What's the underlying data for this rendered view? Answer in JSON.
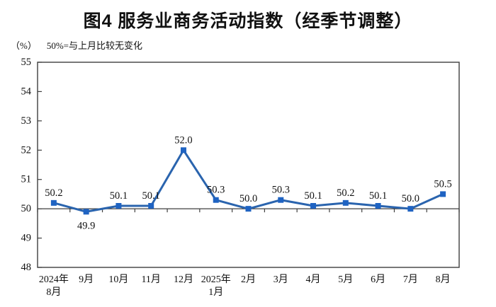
{
  "header": {
    "title": "图4 服务业商务活动指数（经季节调整）",
    "unit_label": "（%）",
    "note": "50%=与上月比较无变化"
  },
  "colors": {
    "line": "#2A64AE",
    "marker": "#1F63C2",
    "axis": "#3f3f3f",
    "text": "#111111",
    "background": "#ffffff"
  },
  "chart_data": {
    "type": "line",
    "title": "图4 服务业商务活动指数（经季节调整）",
    "subtitle": "（%） 50%=与上月比较无变化",
    "categories": [
      {
        "label": "2024年",
        "sublabel": "8月"
      },
      {
        "label": "9月"
      },
      {
        "label": "10月"
      },
      {
        "label": "11月"
      },
      {
        "label": "12月"
      },
      {
        "label": "2025年",
        "sublabel": "1月"
      },
      {
        "label": "2月"
      },
      {
        "label": "3月"
      },
      {
        "label": "4月"
      },
      {
        "label": "5月"
      },
      {
        "label": "6月"
      },
      {
        "label": "7月"
      },
      {
        "label": "8月"
      }
    ],
    "values": [
      50.2,
      49.9,
      50.1,
      50.1,
      52.0,
      50.3,
      50.0,
      50.3,
      50.1,
      50.2,
      50.1,
      50.0,
      50.5
    ],
    "data_labels": [
      "50.2",
      "49.9",
      "50.1",
      "50.1",
      "52.0",
      "50.3",
      "50.0",
      "50.3",
      "50.1",
      "50.2",
      "50.1",
      "50.0",
      "50.5"
    ],
    "ylim": [
      48,
      55
    ],
    "ytick_step": 1,
    "yticks": [
      "55",
      "54",
      "53",
      "52",
      "51",
      "50",
      "49",
      "48"
    ],
    "reference_line": 50,
    "grid": false,
    "legend": "none",
    "xlabel": "",
    "ylabel": ""
  }
}
